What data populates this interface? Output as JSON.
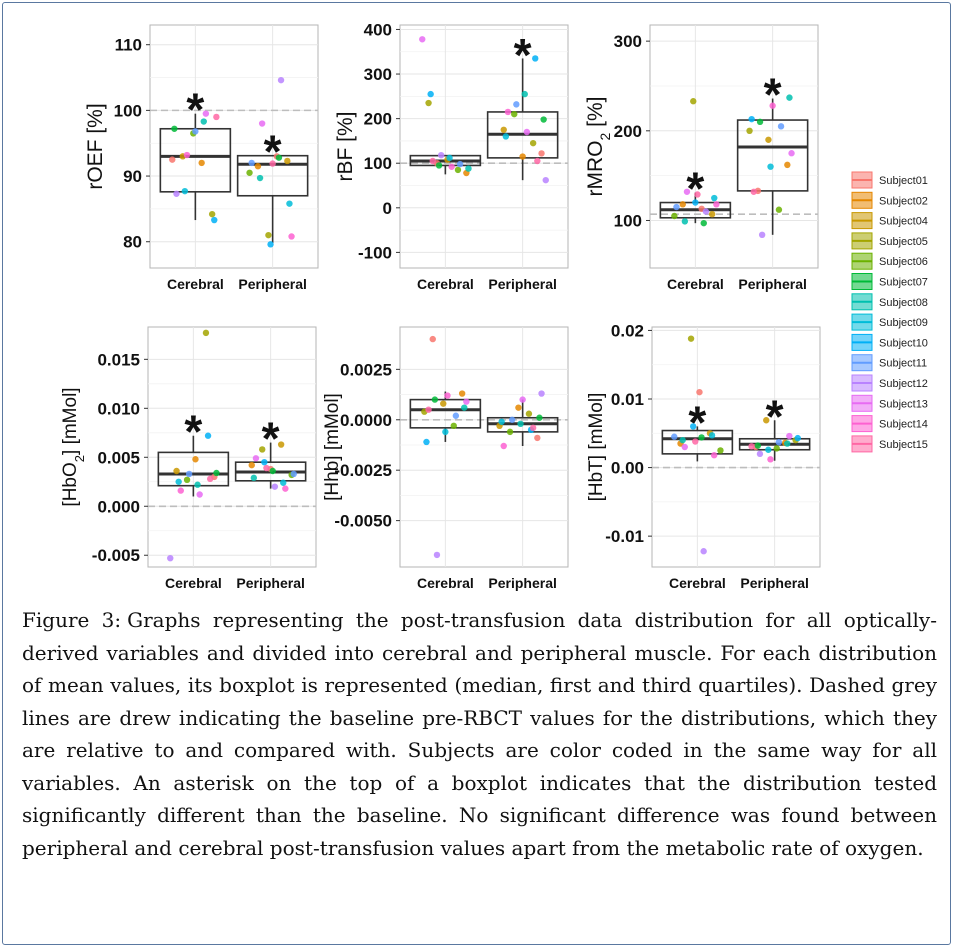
{
  "figure": {
    "caption_label": "Figure 3:",
    "caption_text": "Graphs representing the post-transfusion data distribution for all optically-derived variables and divided into cerebral and peripheral muscle. For each distribution of mean values, its boxplot is represented (median, first and third quartiles). Dashed grey lines are drew indicating the baseline pre-RBCT values for the distributions, which they are relative to and compared with. Subjects are color coded in the same way for all variables. An asterisk on the top of a boxplot indicates that the distribution tested significantly different than the baseline. No significant difference was found between peripheral and cerebral post-transfusion values apart from the metabolic rate of oxygen."
  },
  "legend": {
    "entries": [
      "Subject01",
      "Subject02",
      "Subject04",
      "Subject05",
      "Subject06",
      "Subject07",
      "Subject08",
      "Subject09",
      "Subject10",
      "Subject11",
      "Subject12",
      "Subject13",
      "Subject14",
      "Subject15"
    ],
    "colors": [
      "#F8766D",
      "#E58700",
      "#C99800",
      "#A3A500",
      "#6BB100",
      "#00BA38",
      "#00C0AF",
      "#00BCD8",
      "#00B0F6",
      "#619CFF",
      "#B983FF",
      "#E76BF3",
      "#FD61D1",
      "#FF67A4"
    ]
  },
  "chart_data": [
    {
      "type": "box",
      "id": "roef",
      "ylabel_main": "rOEF [%]",
      "ylabel_sub": "",
      "ylim": [
        76,
        113
      ],
      "yticks": [
        80,
        90,
        100,
        110
      ],
      "ytick_labels": [
        "80",
        "90",
        "100",
        "110"
      ],
      "baseline": 100,
      "categories": [
        "Cerebral",
        "Peripheral"
      ],
      "boxes": [
        {
          "q1": 87.6,
          "median": 93.0,
          "q3": 97.2,
          "whisker_low": 83.3,
          "whisker_high": 99.5,
          "significant": true
        },
        {
          "q1": 87.0,
          "median": 91.8,
          "q3": 93.1,
          "whisker_low": 79.8,
          "whisker_high": 93.1,
          "significant": true
        }
      ],
      "points": [
        [
          {
            "s": 0,
            "v": 92.5
          },
          {
            "s": 1,
            "v": 92.0
          },
          {
            "s": 2,
            "v": 93.0
          },
          {
            "s": 3,
            "v": 84.2
          },
          {
            "s": 4,
            "v": 96.5
          },
          {
            "s": 5,
            "v": 97.2
          },
          {
            "s": 6,
            "v": 98.3
          },
          {
            "s": 7,
            "v": 87.7
          },
          {
            "s": 8,
            "v": 83.3
          },
          {
            "s": 9,
            "v": 96.8
          },
          {
            "s": 10,
            "v": 87.3
          },
          {
            "s": 11,
            "v": 99.5
          },
          {
            "s": 12,
            "v": 93.2
          },
          {
            "s": 13,
            "v": 99.0
          }
        ],
        [
          {
            "s": 0,
            "v": 93.0
          },
          {
            "s": 1,
            "v": 91.5
          },
          {
            "s": 2,
            "v": 92.3
          },
          {
            "s": 3,
            "v": 81.0
          },
          {
            "s": 4,
            "v": 90.5
          },
          {
            "s": 5,
            "v": 92.8
          },
          {
            "s": 6,
            "v": 89.7
          },
          {
            "s": 7,
            "v": 85.8
          },
          {
            "s": 8,
            "v": 79.6
          },
          {
            "s": 9,
            "v": 92.0
          },
          {
            "s": 10,
            "v": 104.6
          },
          {
            "s": 11,
            "v": 98.0
          },
          {
            "s": 12,
            "v": 80.8
          },
          {
            "s": 13,
            "v": 91.9
          }
        ]
      ]
    },
    {
      "type": "box",
      "id": "rbf",
      "ylabel_main": "rBF [%]",
      "ylabel_sub": "",
      "ylim": [
        -135,
        410
      ],
      "yticks": [
        -100,
        0,
        100,
        200,
        300,
        400
      ],
      "ytick_labels": [
        "-100",
        "0",
        "100",
        "200",
        "300",
        "400"
      ],
      "baseline": 100,
      "categories": [
        "Cerebral",
        "Peripheral"
      ],
      "boxes": [
        {
          "q1": 95,
          "median": 105,
          "q3": 117,
          "whisker_low": 75,
          "whisker_high": 117,
          "significant": false
        },
        {
          "q1": 112,
          "median": 165,
          "q3": 215,
          "whisker_low": 62,
          "whisker_high": 335,
          "significant": true
        }
      ],
      "points": [
        [
          {
            "s": 0,
            "v": 100
          },
          {
            "s": 1,
            "v": 78
          },
          {
            "s": 2,
            "v": 108
          },
          {
            "s": 3,
            "v": 235
          },
          {
            "s": 4,
            "v": 85
          },
          {
            "s": 5,
            "v": 95
          },
          {
            "s": 6,
            "v": 88
          },
          {
            "s": 7,
            "v": 112
          },
          {
            "s": 8,
            "v": 255
          },
          {
            "s": 9,
            "v": 98
          },
          {
            "s": 10,
            "v": 118
          },
          {
            "s": 11,
            "v": 378
          },
          {
            "s": 12,
            "v": 92
          },
          {
            "s": 13,
            "v": 105
          }
        ],
        [
          {
            "s": 0,
            "v": 122
          },
          {
            "s": 1,
            "v": 115
          },
          {
            "s": 2,
            "v": 175
          },
          {
            "s": 3,
            "v": 145
          },
          {
            "s": 4,
            "v": 210
          },
          {
            "s": 5,
            "v": 198
          },
          {
            "s": 6,
            "v": 255
          },
          {
            "s": 7,
            "v": 160
          },
          {
            "s": 8,
            "v": 335
          },
          {
            "s": 9,
            "v": 232
          },
          {
            "s": 10,
            "v": 62
          },
          {
            "s": 11,
            "v": 170
          },
          {
            "s": 12,
            "v": 215
          },
          {
            "s": 13,
            "v": 105
          }
        ]
      ]
    },
    {
      "type": "box",
      "id": "rmro2",
      "ylabel_main": "rMRO",
      "ylabel_sub": "2",
      "ylabel_tail": " [%]",
      "ylim": [
        47,
        318
      ],
      "yticks": [
        100,
        200,
        300
      ],
      "ytick_labels": [
        "100",
        "200",
        "300"
      ],
      "baseline": 107,
      "categories": [
        "Cerebral",
        "Peripheral"
      ],
      "boxes": [
        {
          "q1": 103,
          "median": 112,
          "q3": 120,
          "whisker_low": 97,
          "whisker_high": 131,
          "significant": true
        },
        {
          "q1": 133,
          "median": 182,
          "q3": 212,
          "whisker_low": 84,
          "whisker_high": 236,
          "significant": true
        }
      ],
      "points": [
        [
          {
            "s": 0,
            "v": 113
          },
          {
            "s": 1,
            "v": 118
          },
          {
            "s": 2,
            "v": 107
          },
          {
            "s": 3,
            "v": 233
          },
          {
            "s": 4,
            "v": 105
          },
          {
            "s": 5,
            "v": 97
          },
          {
            "s": 6,
            "v": 99
          },
          {
            "s": 7,
            "v": 125
          },
          {
            "s": 8,
            "v": 120
          },
          {
            "s": 9,
            "v": 115
          },
          {
            "s": 10,
            "v": 110
          },
          {
            "s": 11,
            "v": 132
          },
          {
            "s": 12,
            "v": 118
          },
          {
            "s": 13,
            "v": 129
          }
        ],
        [
          {
            "s": 0,
            "v": 133
          },
          {
            "s": 1,
            "v": 162
          },
          {
            "s": 2,
            "v": 190
          },
          {
            "s": 3,
            "v": 200
          },
          {
            "s": 4,
            "v": 112
          },
          {
            "s": 5,
            "v": 210
          },
          {
            "s": 6,
            "v": 237
          },
          {
            "s": 7,
            "v": 160
          },
          {
            "s": 8,
            "v": 213
          },
          {
            "s": 9,
            "v": 205
          },
          {
            "s": 10,
            "v": 84
          },
          {
            "s": 11,
            "v": 175
          },
          {
            "s": 12,
            "v": 228
          },
          {
            "s": 13,
            "v": 132
          }
        ]
      ]
    },
    {
      "type": "box",
      "id": "hbo2",
      "ylabel_main": "[HbO",
      "ylabel_sub": "2",
      "ylabel_tail": "] [mMol]",
      "ylim": [
        -0.0062,
        0.0183
      ],
      "yticks": [
        -0.005,
        0.0,
        0.005,
        0.01,
        0.015
      ],
      "ytick_labels": [
        "-0.005",
        "0.000",
        "0.005",
        "0.010",
        "0.015"
      ],
      "baseline": 0,
      "categories": [
        "Cerebral",
        "Peripheral"
      ],
      "boxes": [
        {
          "q1": 0.0021,
          "median": 0.0033,
          "q3": 0.0055,
          "whisker_low": 0.001,
          "whisker_high": 0.0072,
          "significant": true
        },
        {
          "q1": 0.0026,
          "median": 0.0035,
          "q3": 0.0045,
          "whisker_low": 0.0018,
          "whisker_high": 0.0065,
          "significant": true
        }
      ],
      "points": [
        [
          {
            "s": 0,
            "v": 0.003
          },
          {
            "s": 1,
            "v": 0.0048
          },
          {
            "s": 2,
            "v": 0.0036
          },
          {
            "s": 3,
            "v": 0.0177
          },
          {
            "s": 4,
            "v": 0.0027
          },
          {
            "s": 5,
            "v": 0.0034
          },
          {
            "s": 6,
            "v": 0.0022
          },
          {
            "s": 7,
            "v": 0.0025
          },
          {
            "s": 8,
            "v": 0.0072
          },
          {
            "s": 9,
            "v": 0.0033
          },
          {
            "s": 10,
            "v": -0.0053
          },
          {
            "s": 11,
            "v": 0.0012
          },
          {
            "s": 12,
            "v": 0.0016
          },
          {
            "s": 13,
            "v": 0.0028
          }
        ],
        [
          {
            "s": 0,
            "v": 0.0038
          },
          {
            "s": 1,
            "v": 0.0042
          },
          {
            "s": 2,
            "v": 0.0063
          },
          {
            "s": 3,
            "v": 0.0058
          },
          {
            "s": 4,
            "v": 0.0032
          },
          {
            "s": 5,
            "v": 0.0036
          },
          {
            "s": 6,
            "v": 0.0029
          },
          {
            "s": 7,
            "v": 0.0024
          },
          {
            "s": 8,
            "v": 0.0045
          },
          {
            "s": 9,
            "v": 0.0033
          },
          {
            "s": 10,
            "v": 0.002
          },
          {
            "s": 11,
            "v": 0.0049
          },
          {
            "s": 12,
            "v": 0.0018
          },
          {
            "s": 13,
            "v": 0.0039
          }
        ]
      ]
    },
    {
      "type": "box",
      "id": "hhb",
      "ylabel_main": "[Hhb] [mMol]",
      "ylabel_sub": "",
      "ylim": [
        -0.0073,
        0.0046
      ],
      "yticks": [
        -0.005,
        -0.0025,
        0.0,
        0.0025
      ],
      "ytick_labels": [
        "-0.0050",
        "-0.0025",
        "0.0000",
        "0.0025"
      ],
      "baseline": 0,
      "categories": [
        "Cerebral",
        "Peripheral"
      ],
      "boxes": [
        {
          "q1": -0.0004,
          "median": 0.0005,
          "q3": 0.001,
          "whisker_low": -0.0011,
          "whisker_high": 0.0014,
          "significant": false
        },
        {
          "q1": -0.0006,
          "median": -0.0002,
          "q3": 0.0001,
          "whisker_low": -0.0013,
          "whisker_high": 0.001,
          "significant": false
        }
      ],
      "points": [
        [
          {
            "s": 0,
            "v": 0.004
          },
          {
            "s": 1,
            "v": 0.0013
          },
          {
            "s": 2,
            "v": 0.0008
          },
          {
            "s": 3,
            "v": 0.0004
          },
          {
            "s": 4,
            "v": -0.0003
          },
          {
            "s": 5,
            "v": 0.001
          },
          {
            "s": 6,
            "v": 0.0006
          },
          {
            "s": 7,
            "v": -0.0006
          },
          {
            "s": 8,
            "v": -0.0011
          },
          {
            "s": 9,
            "v": 0.0002
          },
          {
            "s": 10,
            "v": -0.0067
          },
          {
            "s": 11,
            "v": 0.0009
          },
          {
            "s": 12,
            "v": 0.0012
          },
          {
            "s": 13,
            "v": 0.0005
          }
        ],
        [
          {
            "s": 0,
            "v": -0.0009
          },
          {
            "s": 1,
            "v": 0.0006
          },
          {
            "s": 2,
            "v": -0.0003
          },
          {
            "s": 3,
            "v": 0.0003
          },
          {
            "s": 4,
            "v": -0.0006
          },
          {
            "s": 5,
            "v": 0.0001
          },
          {
            "s": 6,
            "v": -0.0002
          },
          {
            "s": 7,
            "v": -0.0001
          },
          {
            "s": 8,
            "v": -0.0005
          },
          {
            "s": 9,
            "v": 0.0
          },
          {
            "s": 10,
            "v": 0.0013
          },
          {
            "s": 11,
            "v": 0.001
          },
          {
            "s": 12,
            "v": -0.0013
          },
          {
            "s": 13,
            "v": -0.0004
          }
        ]
      ]
    },
    {
      "type": "box",
      "id": "hbt",
      "ylabel_main": "[HbT] [mMol]",
      "ylabel_sub": "",
      "ylim": [
        -0.0145,
        0.0205
      ],
      "yticks": [
        -0.01,
        0.0,
        0.01,
        0.02
      ],
      "ytick_labels": [
        "-0.01",
        "0.00",
        "0.01",
        "0.02"
      ],
      "baseline": 0,
      "categories": [
        "Cerebral",
        "Peripheral"
      ],
      "boxes": [
        {
          "q1": 0.002,
          "median": 0.0042,
          "q3": 0.0054,
          "whisker_low": 0.0009,
          "whisker_high": 0.006,
          "significant": true
        },
        {
          "q1": 0.0026,
          "median": 0.0034,
          "q3": 0.0042,
          "whisker_low": 0.001,
          "whisker_high": 0.0069,
          "significant": true
        }
      ],
      "points": [
        [
          {
            "s": 0,
            "v": 0.011
          },
          {
            "s": 1,
            "v": 0.0035
          },
          {
            "s": 2,
            "v": 0.005
          },
          {
            "s": 3,
            "v": 0.0188
          },
          {
            "s": 4,
            "v": 0.0025
          },
          {
            "s": 5,
            "v": 0.0044
          },
          {
            "s": 6,
            "v": 0.004
          },
          {
            "s": 7,
            "v": 0.0047
          },
          {
            "s": 8,
            "v": 0.006
          },
          {
            "s": 9,
            "v": 0.0045
          },
          {
            "s": 10,
            "v": -0.0122
          },
          {
            "s": 11,
            "v": 0.003
          },
          {
            "s": 12,
            "v": 0.0018
          },
          {
            "s": 13,
            "v": 0.0038
          }
        ],
        [
          {
            "s": 0,
            "v": 0.003
          },
          {
            "s": 1,
            "v": 0.0036
          },
          {
            "s": 2,
            "v": 0.0069
          },
          {
            "s": 3,
            "v": 0.004
          },
          {
            "s": 4,
            "v": 0.0028
          },
          {
            "s": 5,
            "v": 0.0032
          },
          {
            "s": 6,
            "v": 0.0035
          },
          {
            "s": 7,
            "v": 0.0026
          },
          {
            "s": 8,
            "v": 0.0043
          },
          {
            "s": 9,
            "v": 0.0037
          },
          {
            "s": 10,
            "v": 0.002
          },
          {
            "s": 11,
            "v": 0.0046
          },
          {
            "s": 12,
            "v": 0.0012
          },
          {
            "s": 13,
            "v": 0.0031
          }
        ]
      ]
    }
  ]
}
